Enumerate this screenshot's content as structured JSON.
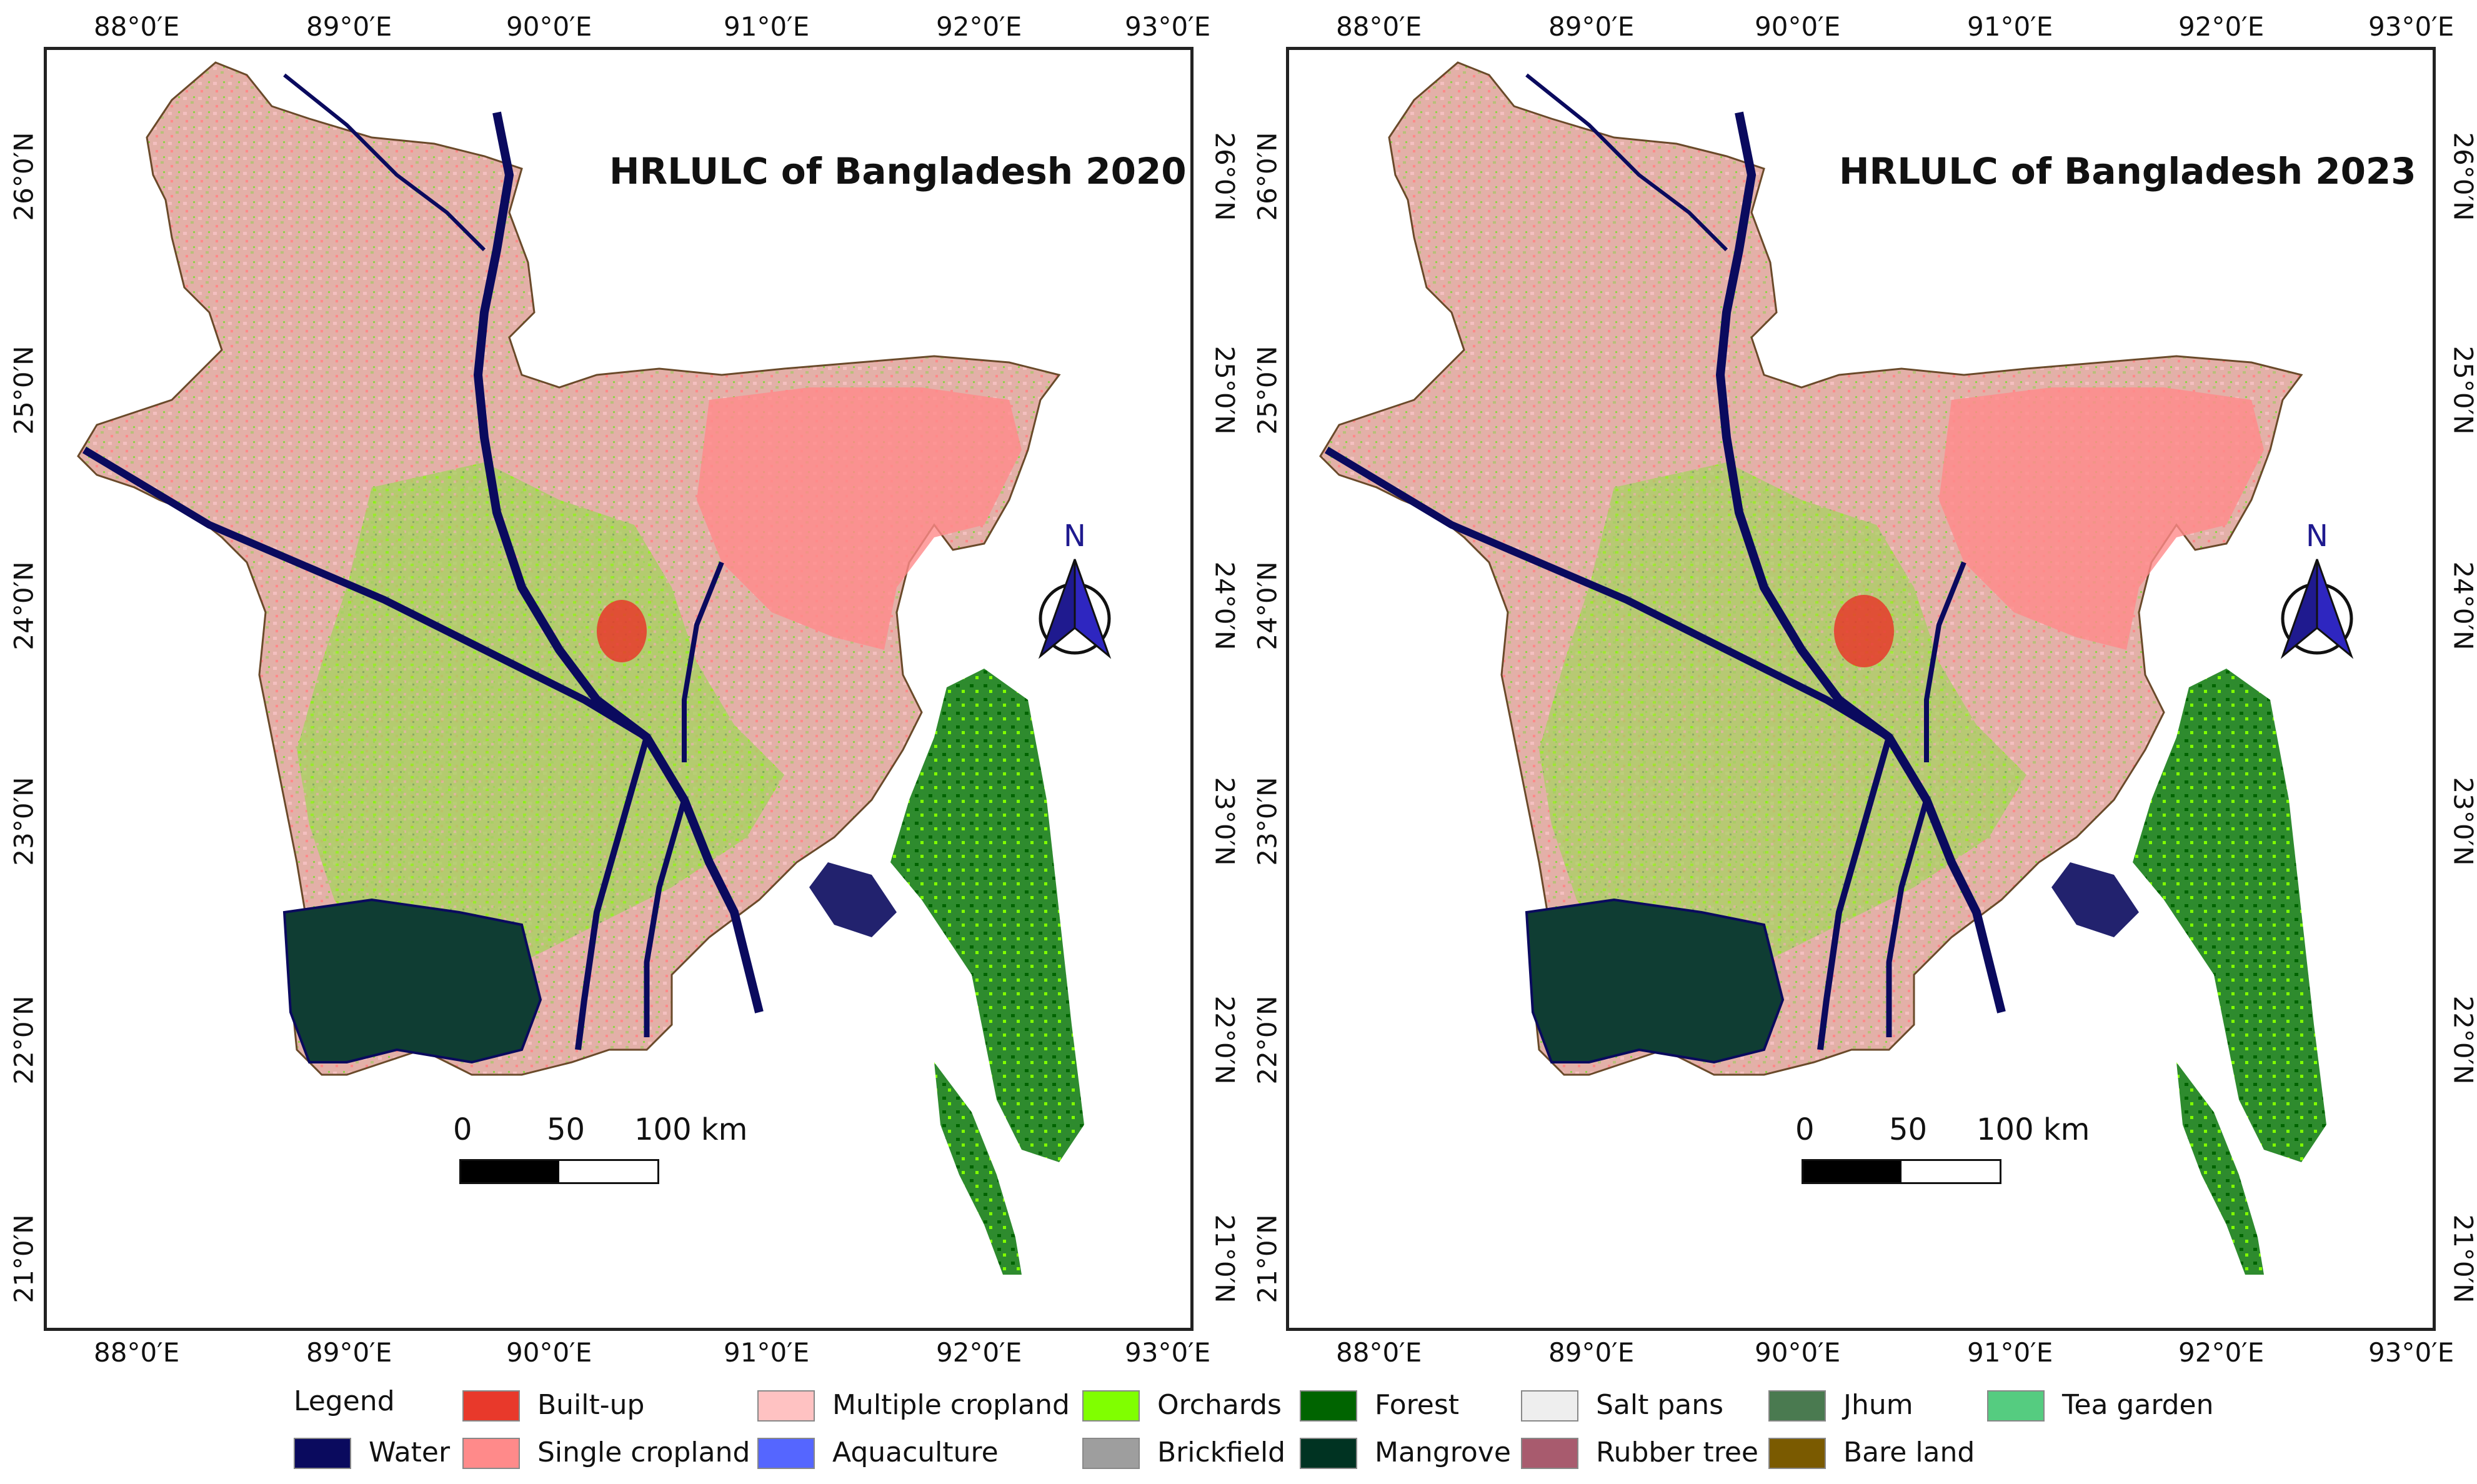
{
  "maps": [
    {
      "title": "HRLULC of Bangladesh 2020",
      "scale": {
        "labels": [
          "0",
          "50",
          "100 km"
        ]
      },
      "north_label": "N"
    },
    {
      "title": "HRLULC of Bangladesh 2023",
      "scale": {
        "labels": [
          "0",
          "50",
          "100 km"
        ]
      },
      "north_label": "N"
    }
  ],
  "longitude_ticks": [
    "88°0′E",
    "89°0′E",
    "90°0′E",
    "91°0′E",
    "92°0′E",
    "93°0′E"
  ],
  "latitude_ticks": [
    "26°0′N",
    "25°0′N",
    "24°0′N",
    "23°0′N",
    "22°0′N",
    "21°0′N"
  ],
  "legend": {
    "title": "Legend",
    "items": [
      {
        "label": "Water",
        "color": "#0a0a5e"
      },
      {
        "label": "Built-up",
        "color": "#e8392b"
      },
      {
        "label": "Single cropland",
        "color": "#ff8a8a"
      },
      {
        "label": "Multiple cropland",
        "color": "#ffc2c2"
      },
      {
        "label": "Aquaculture",
        "color": "#5566ff"
      },
      {
        "label": "Orchards",
        "color": "#80ff00"
      },
      {
        "label": "Brickfield",
        "color": "#9e9e9e"
      },
      {
        "label": "Forest",
        "color": "#006400"
      },
      {
        "label": "Mangrove",
        "color": "#003322"
      },
      {
        "label": "Salt pans",
        "color": "#eeeeee"
      },
      {
        "label": "Rubber tree",
        "color": "#a85b6e"
      },
      {
        "label": "Jhum",
        "color": "#4a7a50"
      },
      {
        "label": "Bare land",
        "color": "#7a5a00"
      },
      {
        "label": "Tea garden",
        "color": "#55cc80"
      }
    ]
  }
}
